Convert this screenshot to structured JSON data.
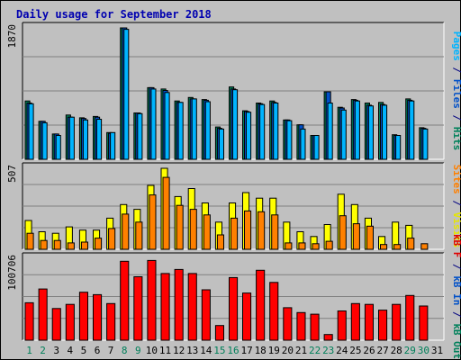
{
  "chart_data": {
    "type": "bar",
    "title": "Daily usage for September 2018",
    "categories": [
      "1",
      "2",
      "3",
      "4",
      "5",
      "6",
      "7",
      "8",
      "9",
      "10",
      "11",
      "12",
      "13",
      "14",
      "15",
      "16",
      "17",
      "18",
      "19",
      "20",
      "21",
      "22",
      "23",
      "24",
      "25",
      "26",
      "27",
      "28",
      "29",
      "30",
      "31"
    ],
    "weekend_days": [
      "1",
      "2",
      "8",
      "9",
      "15",
      "16",
      "22",
      "23",
      "29",
      "30"
    ],
    "panels": [
      {
        "id": "hits",
        "max_label": "1870",
        "ylim": [
          0,
          1870
        ],
        "side_labels": [
          {
            "text": "Pages",
            "color": "#00b4ff"
          },
          {
            "text": " / ",
            "color": "#000080"
          },
          {
            "text": "Files",
            "color": "#0050c8"
          },
          {
            "text": " / ",
            "color": "#000080"
          },
          {
            "text": "Hits",
            "color": "#00805a"
          }
        ],
        "series": [
          {
            "name": "Hits",
            "color": "#00805a",
            "values": [
              830,
              540,
              360,
              630,
              590,
              610,
              380,
              1870,
              660,
              1020,
              1000,
              830,
              880,
              850,
              460,
              1030,
              690,
              800,
              830,
              560,
              490,
              340,
              960,
              740,
              850,
              800,
              810,
              350,
              860,
              450,
              0
            ]
          },
          {
            "name": "Files",
            "color": "#0050c8",
            "values": [
              800,
              540,
              360,
              600,
              580,
              600,
              370,
              1870,
              660,
              1020,
              980,
              810,
              860,
              840,
              440,
              1000,
              680,
              790,
              810,
              560,
              490,
              340,
              960,
              730,
              840,
              770,
              780,
              340,
              840,
              440,
              0
            ]
          },
          {
            "name": "Pages",
            "color": "#00b4ff",
            "values": [
              790,
              520,
              340,
              600,
              560,
              570,
              380,
              1850,
              650,
              1000,
              950,
              810,
              860,
              820,
              430,
              990,
              670,
              780,
              800,
              550,
              430,
              340,
              800,
              700,
              830,
              760,
              770,
              340,
              830,
              430,
              0
            ]
          }
        ]
      },
      {
        "id": "visits",
        "max_label": "507",
        "ylim": [
          0,
          507
        ],
        "side_labels": [
          {
            "text": "Sites",
            "color": "#ff8000"
          },
          {
            "text": " / ",
            "color": "#000080"
          },
          {
            "text": "Visits",
            "color": "#e6e600"
          }
        ],
        "series": [
          {
            "name": "Visits",
            "color": "#ffff00",
            "values": [
              180,
              110,
              100,
              140,
              120,
              120,
              195,
              280,
              250,
              400,
              507,
              330,
              380,
              290,
              170,
              290,
              355,
              320,
              320,
              170,
              110,
              80,
              155,
              345,
              280,
              195,
              80,
              170,
              150,
              0,
              0
            ]
          },
          {
            "name": "Sites",
            "color": "#ff8000",
            "values": [
              100,
              55,
              55,
              40,
              45,
              70,
              130,
              220,
              170,
              340,
              450,
              275,
              250,
              215,
              90,
              195,
              240,
              235,
              215,
              40,
              40,
              35,
              50,
              210,
              160,
              145,
              30,
              30,
              70,
              35,
              0
            ]
          }
        ]
      },
      {
        "id": "kbytes",
        "max_label": "100706",
        "ylim": [
          0,
          100706
        ],
        "side_labels": [
          {
            "text": "kB F",
            "color": "#e00000"
          },
          {
            "text": " / ",
            "color": "#000080"
          },
          {
            "text": "kB In",
            "color": "#0050c8"
          },
          {
            "text": " / ",
            "color": "#000080"
          },
          {
            "text": "kB Out",
            "color": "#00805a"
          }
        ],
        "series": [
          {
            "name": "kB F",
            "color": "#ff0000",
            "values": [
              46000,
              63000,
              39000,
              44000,
              59000,
              56000,
              45000,
              97000,
              78000,
              98000,
              82000,
              87000,
              82000,
              62000,
              18000,
              77000,
              58000,
              86000,
              71000,
              40000,
              34000,
              32000,
              7000,
              36000,
              45000,
              44000,
              37000,
              44000,
              55000,
              42000,
              0
            ]
          }
        ]
      }
    ]
  }
}
